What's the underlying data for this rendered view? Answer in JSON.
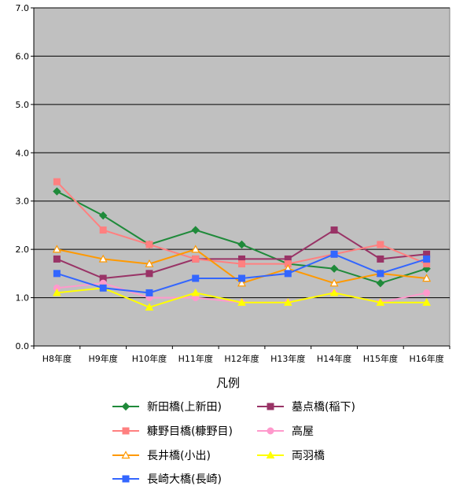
{
  "chart_data": {
    "type": "line",
    "categories": [
      "H8年度",
      "H9年度",
      "H10年度",
      "H11年度",
      "H12年度",
      "H13年度",
      "H14年度",
      "H15年度",
      "H16年度"
    ],
    "ylim": [
      0,
      7
    ],
    "yticks": [
      "0.0",
      "1.0",
      "2.0",
      "3.0",
      "4.0",
      "5.0",
      "6.0",
      "7.0"
    ],
    "grid": true,
    "legend_title": "凡例",
    "legend_position": "bottom",
    "plot_background": "#c0c0c0",
    "series": [
      {
        "name": "新田橋(上新田)",
        "color": "#1f8a3a",
        "marker": "diamond",
        "values": [
          3.2,
          2.7,
          2.1,
          2.4,
          2.1,
          1.7,
          1.6,
          1.3,
          1.6
        ]
      },
      {
        "name": "墓点橋(稲下)",
        "color": "#993366",
        "marker": "square",
        "values": [
          1.8,
          1.4,
          1.5,
          1.8,
          1.8,
          1.8,
          2.4,
          1.8,
          1.9
        ]
      },
      {
        "name": "糠野目橋(糠野目)",
        "color": "#ff8080",
        "marker": "square",
        "values": [
          3.4,
          2.4,
          2.1,
          1.8,
          1.7,
          1.7,
          1.9,
          2.1,
          1.7
        ]
      },
      {
        "name": "高屋",
        "color": "#ff99cc",
        "marker": "circle",
        "values": [
          1.2,
          1.3,
          1.0,
          1.0,
          0.9,
          0.9,
          1.1,
          0.9,
          1.1
        ]
      },
      {
        "name": "長井橋(小出)",
        "color": "#ff9900",
        "marker": "triangle-open",
        "values": [
          2.0,
          1.8,
          1.7,
          2.0,
          1.3,
          1.6,
          1.3,
          1.5,
          1.4
        ]
      },
      {
        "name": "両羽橋",
        "color": "#ffff00",
        "marker": "triangle",
        "values": [
          1.1,
          1.2,
          0.8,
          1.1,
          0.9,
          0.9,
          1.1,
          0.9,
          0.9
        ]
      },
      {
        "name": "長崎大橋(長崎)",
        "color": "#3366ff",
        "marker": "square",
        "values": [
          1.5,
          1.2,
          1.1,
          1.4,
          1.4,
          1.5,
          1.9,
          1.5,
          1.8
        ]
      }
    ]
  }
}
